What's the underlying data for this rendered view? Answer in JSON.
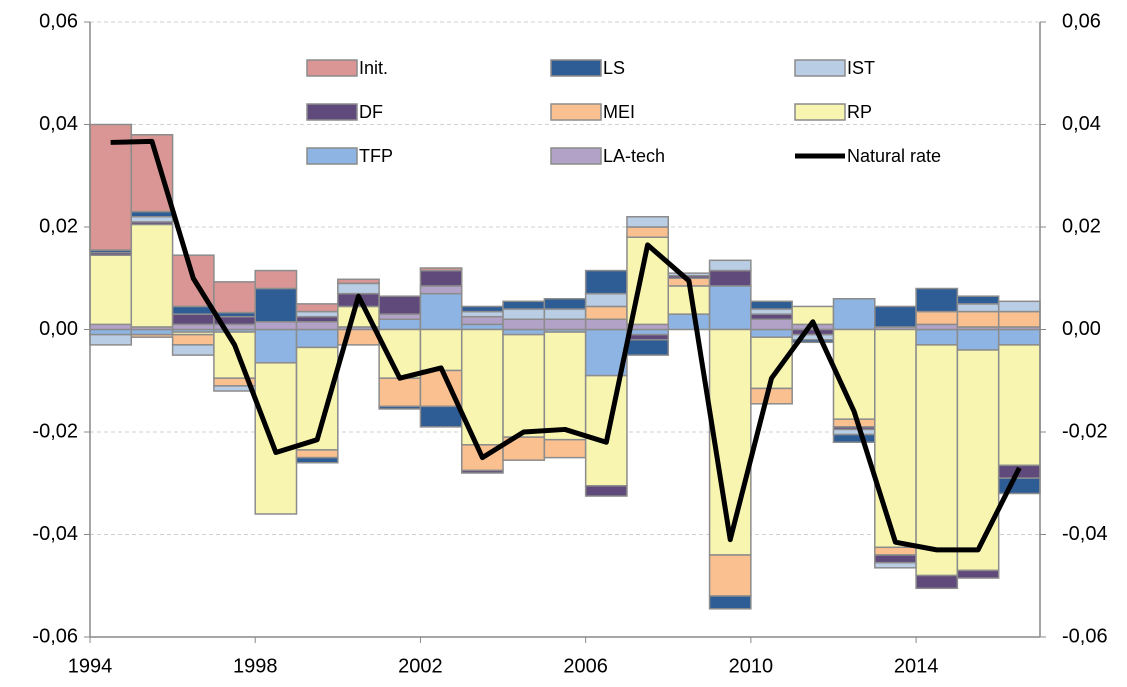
{
  "chart_data": {
    "type": "bar",
    "stacked": true,
    "x": [
      1994,
      1995,
      1996,
      1997,
      1998,
      1999,
      2000,
      2001,
      2002,
      2003,
      2004,
      2005,
      2006,
      2007,
      2008,
      2009,
      2010,
      2011,
      2012,
      2013,
      2014,
      2015,
      2016
    ],
    "xlim": [
      1994,
      2017
    ],
    "xticks": [
      1994,
      1998,
      2002,
      2006,
      2010,
      2014
    ],
    "ylim": [
      -0.06,
      0.06
    ],
    "yticks": [
      {
        "value": -0.06,
        "label": "-0,06"
      },
      {
        "value": -0.04,
        "label": "-0,04"
      },
      {
        "value": -0.02,
        "label": "-0,02"
      },
      {
        "value": 0,
        "label": "0,00"
      },
      {
        "value": 0.02,
        "label": "0,02"
      },
      {
        "value": 0.04,
        "label": "0,04"
      },
      {
        "value": 0.06,
        "label": "0,06"
      }
    ],
    "y2lim": [
      -0.06,
      0.06
    ],
    "y2ticks": [
      {
        "value": -0.06,
        "label": "-0,06"
      },
      {
        "value": -0.04,
        "label": "-0,04"
      },
      {
        "value": -0.02,
        "label": "-0,02"
      },
      {
        "value": 0,
        "label": "0,00"
      },
      {
        "value": 0.02,
        "label": "0,02"
      },
      {
        "value": 0.04,
        "label": "0,04"
      },
      {
        "value": 0.06,
        "label": "0,06"
      }
    ],
    "grid": true,
    "series": [
      {
        "name": "TFP",
        "color": "#8db4e2",
        "values": [
          -0.001,
          -0.001,
          -0.0005,
          -0.0005,
          -0.0065,
          -0.0035,
          0,
          0.002,
          0.007,
          0.001,
          -0.001,
          -0.0005,
          -0.009,
          -0.001,
          0.003,
          0.0085,
          -0.0015,
          0,
          0.006,
          0,
          -0.003,
          -0.004,
          -0.003
        ]
      },
      {
        "name": "LA-tech",
        "color": "#b3a2c7",
        "values": [
          0.001,
          0.0005,
          0.001,
          0.001,
          0.0015,
          0.0015,
          0.0005,
          0.001,
          0.0015,
          0.0015,
          0.002,
          0.002,
          0.002,
          0.001,
          0,
          0,
          0.002,
          0.001,
          0,
          0.0005,
          0.001,
          0.0005,
          0.0005
        ]
      },
      {
        "name": "RP",
        "color": "#f8f5b0",
        "values": [
          0.0135,
          0.02,
          -0.0005,
          -0.009,
          -0.0295,
          -0.02,
          0.004,
          -0.0095,
          -0.008,
          -0.0225,
          -0.02,
          -0.021,
          -0.0215,
          0.017,
          0.0055,
          -0.044,
          -0.01,
          0.0035,
          -0.0175,
          -0.0425,
          -0.045,
          -0.043,
          -0.0235
        ]
      },
      {
        "name": "MEI",
        "color": "#fac090",
        "values": [
          0,
          -0.0005,
          -0.002,
          -0.0015,
          0,
          -0.0015,
          -0.003,
          -0.0055,
          -0.007,
          -0.005,
          -0.0045,
          -0.0035,
          0.0025,
          0.002,
          0.0015,
          -0.008,
          -0.003,
          0,
          -0.0015,
          -0.0015,
          0.0025,
          0.003,
          0.003
        ]
      },
      {
        "name": "DF",
        "color": "#604a7b",
        "values": [
          0.0005,
          0.0005,
          0.002,
          0.0015,
          0,
          0.001,
          0.0025,
          0.0035,
          0.003,
          -0.0005,
          0,
          0,
          -0.002,
          -0.001,
          0.0005,
          0.003,
          0.001,
          -0.001,
          -0.0005,
          -0.0015,
          -0.0025,
          -0.0015,
          -0.0025
        ]
      },
      {
        "name": "IST",
        "color": "#b9cde5",
        "values": [
          -0.002,
          0.001,
          -0.002,
          -0.001,
          0,
          0.001,
          0.002,
          0,
          0,
          0.001,
          0.002,
          0.002,
          0.0025,
          0.002,
          0.0005,
          0.002,
          0.001,
          -0.001,
          -0.001,
          -0.001,
          0,
          0.0015,
          0.002
        ]
      },
      {
        "name": "LS",
        "color": "#2e5c95",
        "values": [
          0.0005,
          0.001,
          0.0015,
          0.0008,
          0.0065,
          -0.001,
          0,
          -0.0005,
          -0.004,
          0.001,
          0.0015,
          0.002,
          0.0045,
          -0.003,
          0,
          -0.0025,
          0.0015,
          -0.0005,
          -0.0015,
          0.004,
          0.0045,
          0.0015,
          -0.003
        ]
      },
      {
        "name": "Init.",
        "color": "#d99694",
        "values": [
          0.0245,
          0.015,
          0.01,
          0.006,
          0.0035,
          0.0015,
          0.0008,
          0,
          0.0005,
          0,
          0,
          0,
          0,
          0,
          0,
          0,
          0,
          0,
          0,
          0,
          0,
          0,
          0
        ]
      },
      {
        "name": "Natural rate",
        "type": "line",
        "color": "#000000",
        "values": [
          0.0365,
          0.0367,
          0.01,
          -0.003,
          -0.024,
          -0.0215,
          0.0065,
          -0.0095,
          -0.0075,
          -0.025,
          -0.02,
          -0.0195,
          -0.022,
          0.0165,
          0.0095,
          -0.041,
          -0.0095,
          0.0015,
          -0.016,
          -0.0415,
          -0.043,
          -0.043,
          -0.027
        ]
      }
    ]
  }
}
